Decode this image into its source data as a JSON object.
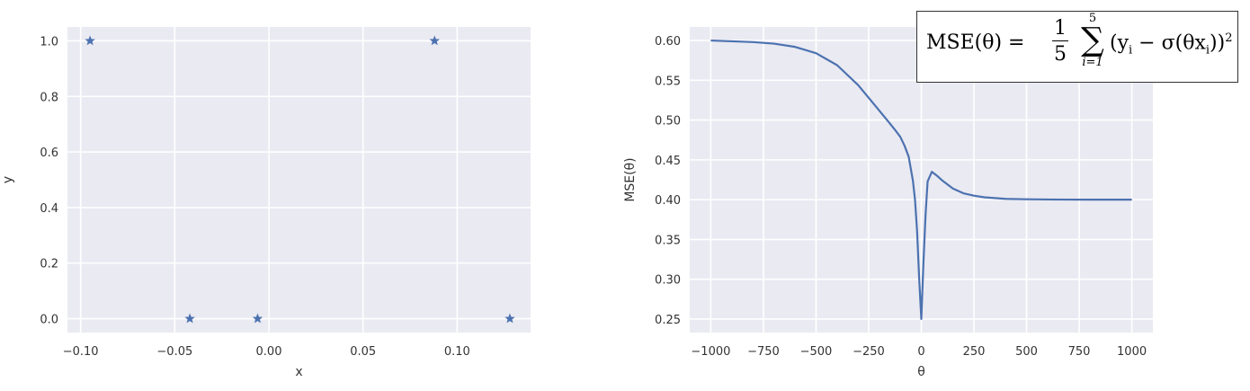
{
  "chart_data": [
    {
      "type": "scatter",
      "title": "",
      "xlabel": "x",
      "ylabel": "y",
      "xlim": [
        -0.107,
        0.139
      ],
      "ylim": [
        -0.05,
        1.05
      ],
      "xticks": [
        -0.1,
        -0.05,
        0.0,
        0.05,
        0.1
      ],
      "xtick_labels": [
        "−0.10",
        "−0.05",
        "0.00",
        "0.05",
        "0.10"
      ],
      "yticks": [
        0.0,
        0.2,
        0.4,
        0.6,
        0.8,
        1.0
      ],
      "ytick_labels": [
        "0.0",
        "0.2",
        "0.4",
        "0.6",
        "0.8",
        "1.0"
      ],
      "grid": true,
      "marker": "star",
      "color": "#4c72b0",
      "background": "#eaeaf2",
      "points": [
        {
          "x": -0.095,
          "y": 1.0
        },
        {
          "x": -0.042,
          "y": 0.0
        },
        {
          "x": -0.006,
          "y": 0.0
        },
        {
          "x": 0.088,
          "y": 1.0
        },
        {
          "x": 0.128,
          "y": 0.0
        }
      ]
    },
    {
      "type": "line",
      "title": "",
      "xlabel": "θ",
      "ylabel": "MSE(θ)",
      "xlim": [
        -1100,
        1100
      ],
      "ylim": [
        0.233,
        0.617
      ],
      "xticks": [
        -1000,
        -750,
        -500,
        -250,
        0,
        250,
        500,
        750,
        1000
      ],
      "xtick_labels": [
        "−1000",
        "−750",
        "−500",
        "−250",
        "0",
        "250",
        "500",
        "750",
        "1000"
      ],
      "yticks": [
        0.25,
        0.3,
        0.35,
        0.4,
        0.45,
        0.5,
        0.55,
        0.6
      ],
      "ytick_labels": [
        "0.25",
        "0.30",
        "0.35",
        "0.40",
        "0.45",
        "0.50",
        "0.55",
        "0.60"
      ],
      "grid": true,
      "color": "#4c72b0",
      "background": "#eaeaf2",
      "series": [
        {
          "x": [
            -1000,
            -900,
            -800,
            -700,
            -600,
            -500,
            -400,
            -300,
            -250,
            -200,
            -150,
            -120,
            -100,
            -80,
            -60,
            -40,
            -30,
            -20,
            -10,
            0,
            10,
            20,
            30,
            50,
            75,
            100,
            150,
            200,
            250,
            300,
            400,
            500,
            600,
            700,
            800,
            900,
            1000
          ],
          "y": [
            0.6,
            0.599,
            0.598,
            0.596,
            0.592,
            0.584,
            0.569,
            0.544,
            0.528,
            0.512,
            0.496,
            0.486,
            0.479,
            0.468,
            0.454,
            0.424,
            0.4,
            0.36,
            0.3,
            0.25,
            0.32,
            0.38,
            0.423,
            0.435,
            0.43,
            0.424,
            0.414,
            0.408,
            0.405,
            0.403,
            0.401,
            0.4005,
            0.4002,
            0.4001,
            0.4,
            0.4,
            0.4
          ]
        }
      ],
      "annotation": {
        "label": "MSE(θ) =",
        "numerator": "1",
        "denominator": "5",
        "sum_upper": "5",
        "sum_lower": "i=1",
        "body": "(y",
        "body_sub": "i",
        "body_mid": " − σ(θx",
        "body_sub2": "i",
        "body_end": "))",
        "exponent": "2"
      }
    }
  ]
}
